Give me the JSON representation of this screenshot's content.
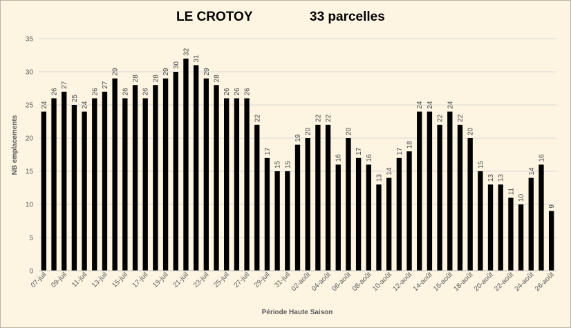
{
  "chart_data": {
    "type": "bar",
    "title_left": "LE CROTOY",
    "title_right": "33 parcelles",
    "xlabel": "Période Haute Saison",
    "ylabel": "NB emplacements",
    "ylim": [
      0,
      35
    ],
    "yticks": [
      0,
      5,
      10,
      15,
      20,
      25,
      30,
      35
    ],
    "grid": true,
    "legend": "none",
    "bar_color": "#000000",
    "categories": [
      "07-juil",
      "08-juil",
      "09-juil",
      "10-juil",
      "11-juil",
      "12-juil",
      "13-juil",
      "14-juil",
      "15-juil",
      "16-juil",
      "17-juil",
      "18-juil",
      "19-juil",
      "20-juil",
      "21-juil",
      "22-juil",
      "23-juil",
      "24-juil",
      "25-juil",
      "26-juil",
      "27-juil",
      "28-juil",
      "29-juil",
      "30-juil",
      "31-juil",
      "01-août",
      "02-août",
      "03-août",
      "04-août",
      "05-août",
      "06-août",
      "07-août",
      "08-août",
      "09-août",
      "10-août",
      "11-août",
      "12-août",
      "13-août",
      "14-août",
      "15-août",
      "16-août",
      "17-août",
      "18-août",
      "19-août",
      "20-août",
      "21-août",
      "22-août",
      "23-août",
      "24-août",
      "25-août",
      "26-août"
    ],
    "shown_x_labels": [
      "07-juil",
      "09-juil",
      "11-juil",
      "13-juil",
      "15-juil",
      "17-juil",
      "19-juil",
      "21-juil",
      "23-juil",
      "25-juil",
      "27-juil",
      "29-juil",
      "31-juil",
      "02-août",
      "04-août",
      "06-août",
      "08-août",
      "10-août",
      "12-août",
      "14-août",
      "16-août",
      "18-août",
      "20-août",
      "22-août",
      "24-août",
      "26-août"
    ],
    "values": [
      24,
      26,
      27,
      25,
      24,
      26,
      27,
      29,
      26,
      28,
      26,
      28,
      29,
      30,
      32,
      31,
      29,
      28,
      26,
      26,
      26,
      22,
      17,
      15,
      15,
      19,
      20,
      22,
      22,
      16,
      20,
      17,
      16,
      13,
      14,
      17,
      18,
      24,
      24,
      22,
      24,
      22,
      20,
      15,
      13,
      13,
      11,
      10,
      14,
      16,
      9
    ]
  }
}
